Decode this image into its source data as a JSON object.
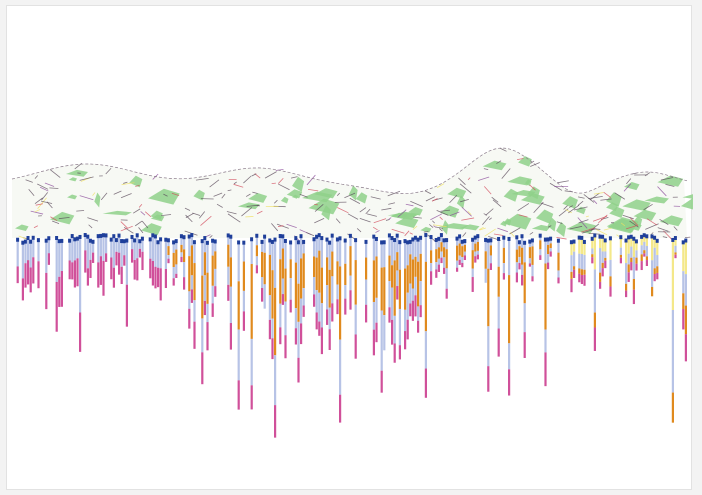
{
  "figure": {
    "background": "#ffffff",
    "frame_border": "#e2e2e2"
  },
  "terrain": {
    "description_colors": {
      "vegetation": "#8fd18a",
      "rock_lines": "#5a4a5a",
      "accent_red": "#d2495a",
      "accent_purple": "#8a4a9a",
      "accent_yellow": "#f0e060"
    }
  },
  "boreholes": {
    "layer_colors": {
      "topsoil_dot": "#1f3f9a",
      "clay": "#b7c3e6",
      "sand": "#e08a1e",
      "gravel": "#f4e88a",
      "bedrock": "#d0509a",
      "other": "#c78ad0"
    }
  }
}
